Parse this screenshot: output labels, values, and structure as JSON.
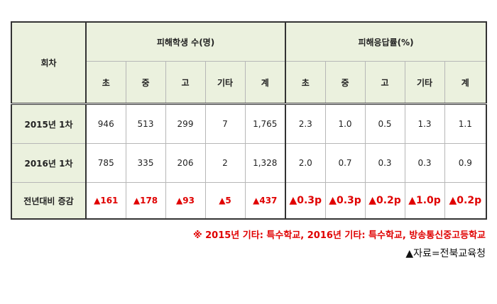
{
  "header": {
    "round": "회차",
    "group1": "피해학생 수(명)",
    "group2": "피해응답률(%)",
    "cols": [
      "초",
      "중",
      "고",
      "기타",
      "계",
      "초",
      "중",
      "고",
      "기타",
      "계"
    ]
  },
  "rows": [
    {
      "label": "2015년  1차",
      "cells": [
        "946",
        "513",
        "299",
        "7",
        "1,765",
        "2.3",
        "1.0",
        "0.5",
        "1.3",
        "1.1"
      ]
    },
    {
      "label": "2016년  1차",
      "cells": [
        "785",
        "335",
        "206",
        "2",
        "1,328",
        "2.0",
        "0.7",
        "0.3",
        "0.3",
        "0.9"
      ]
    }
  ],
  "change": {
    "label": "전년대비  증감",
    "cells": [
      "▲161",
      "▲178",
      "▲93",
      "▲5",
      "▲437",
      "▲0.3p",
      "▲0.3p",
      "▲0.2p",
      "▲1.0p",
      "▲0.2p"
    ]
  },
  "note": "※ 2015년 기타: 특수학교, 2016년 기타: 특수학교, 방송통신중고등학교",
  "source": "▲자료=전북교육청",
  "colors": {
    "header_bg": "#ebf1de",
    "accent_red": "#e00000"
  }
}
